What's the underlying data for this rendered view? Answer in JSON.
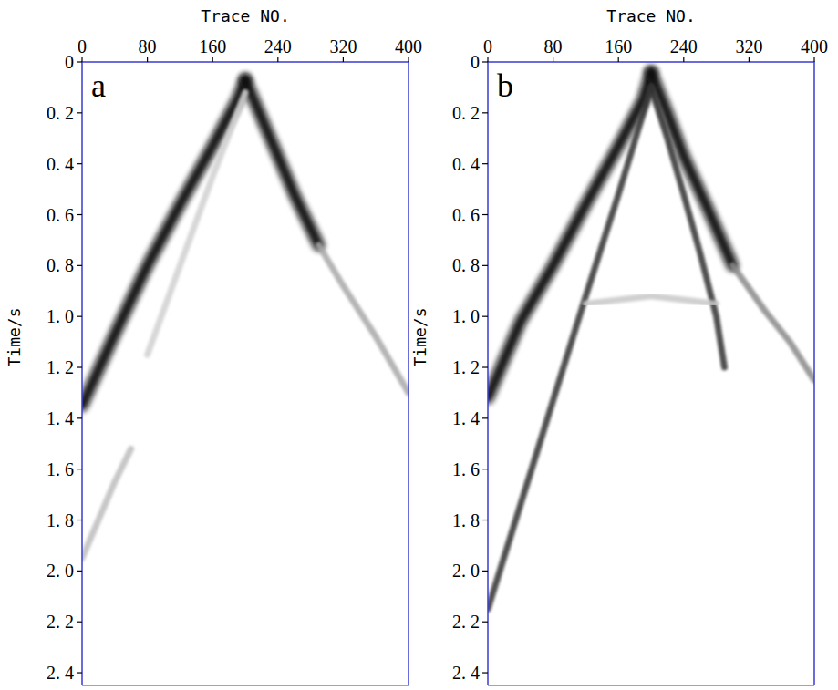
{
  "chart_data": [
    {
      "type": "line",
      "title": "a",
      "x_label": "Trace NO.",
      "y_label": "Time/s",
      "xlim": [
        0,
        400
      ],
      "ylim": [
        0,
        2.45
      ],
      "xticks": [
        0,
        80,
        160,
        240,
        320,
        400
      ],
      "yticks": [
        0,
        {
          "value": 0.2,
          "label": "0. 2"
        },
        {
          "value": 0.4,
          "label": "0. 4"
        },
        {
          "value": 0.6,
          "label": "0. 6"
        },
        {
          "value": 0.8,
          "label": "0. 8"
        },
        {
          "value": 1.0,
          "label": "1. 0"
        },
        {
          "value": 1.2,
          "label": "1. 2"
        },
        {
          "value": 1.4,
          "label": "1. 4"
        },
        {
          "value": 1.6,
          "label": "1. 6"
        },
        {
          "value": 1.8,
          "label": "1. 8"
        },
        {
          "value": 2.0,
          "label": "2. 0"
        },
        {
          "value": 2.2,
          "label": "2. 2"
        },
        {
          "value": 2.4,
          "label": "2. 4"
        }
      ],
      "grid": false,
      "series": [
        {
          "color": "#111111",
          "line_style": "thick",
          "x": [
            0,
            40,
            80,
            120,
            160,
            190,
            200
          ],
          "values": [
            1.35,
            1.07,
            0.8,
            0.56,
            0.33,
            0.15,
            0.07
          ]
        },
        {
          "color": "#111111",
          "line_style": "thick",
          "x": [
            200,
            220,
            240,
            260,
            290
          ],
          "values": [
            0.07,
            0.22,
            0.37,
            0.52,
            0.72
          ]
        },
        {
          "color": "#a8a8a8",
          "line_style": "thin",
          "x": [
            290,
            320,
            360,
            400
          ],
          "values": [
            0.72,
            0.88,
            1.08,
            1.3
          ]
        },
        {
          "color": "#bdbdbd",
          "line_style": "thin",
          "x": [
            0,
            20,
            40,
            60
          ],
          "values": [
            1.95,
            1.8,
            1.65,
            1.52
          ]
        },
        {
          "color": "#d0d0d0",
          "line_style": "thin",
          "x": [
            200,
            160,
            120,
            80
          ],
          "values": [
            0.12,
            0.45,
            0.8,
            1.15
          ]
        }
      ]
    },
    {
      "type": "line",
      "title": "b",
      "x_label": "Trace NO.",
      "y_label": "Time/s",
      "xlim": [
        0,
        400
      ],
      "ylim": [
        0,
        2.45
      ],
      "xticks": [
        0,
        80,
        160,
        240,
        320,
        400
      ],
      "yticks": [
        0,
        {
          "value": 0.2,
          "label": "0. 2"
        },
        {
          "value": 0.4,
          "label": "0. 4"
        },
        {
          "value": 0.6,
          "label": "0. 6"
        },
        {
          "value": 0.8,
          "label": "0. 8"
        },
        {
          "value": 1.0,
          "label": "1. 0"
        },
        {
          "value": 1.2,
          "label": "1. 2"
        },
        {
          "value": 1.4,
          "label": "1. 4"
        },
        {
          "value": 1.6,
          "label": "1. 6"
        },
        {
          "value": 1.8,
          "label": "1. 8"
        },
        {
          "value": 2.0,
          "label": "2. 0"
        },
        {
          "value": 2.2,
          "label": "2. 2"
        },
        {
          "value": 2.4,
          "label": "2. 4"
        }
      ],
      "grid": false,
      "series": [
        {
          "color": "#111111",
          "line_style": "thick",
          "x": [
            0,
            40,
            80,
            120,
            160,
            190,
            200
          ],
          "values": [
            1.32,
            1.02,
            0.8,
            0.56,
            0.33,
            0.15,
            0.04
          ]
        },
        {
          "color": "#111111",
          "line_style": "thick",
          "x": [
            200,
            220,
            240,
            270,
            300
          ],
          "values": [
            0.04,
            0.2,
            0.37,
            0.58,
            0.8
          ]
        },
        {
          "color": "#8a8a8a",
          "line_style": "thin",
          "x": [
            300,
            340,
            370,
            400
          ],
          "values": [
            0.8,
            0.98,
            1.1,
            1.25
          ]
        },
        {
          "color": "#333333",
          "line_style": "thin",
          "x": [
            200,
            160,
            120,
            80,
            40,
            0
          ],
          "values": [
            0.1,
            0.52,
            0.92,
            1.33,
            1.74,
            2.15
          ]
        },
        {
          "color": "#333333",
          "line_style": "thin",
          "x": [
            200,
            220,
            240,
            260,
            280,
            290
          ],
          "values": [
            0.1,
            0.3,
            0.52,
            0.75,
            1.0,
            1.2
          ]
        },
        {
          "color": "#c8c8c8",
          "line_style": "thin",
          "x": [
            120,
            200,
            280
          ],
          "values": [
            0.95,
            0.92,
            0.95
          ]
        }
      ]
    }
  ]
}
